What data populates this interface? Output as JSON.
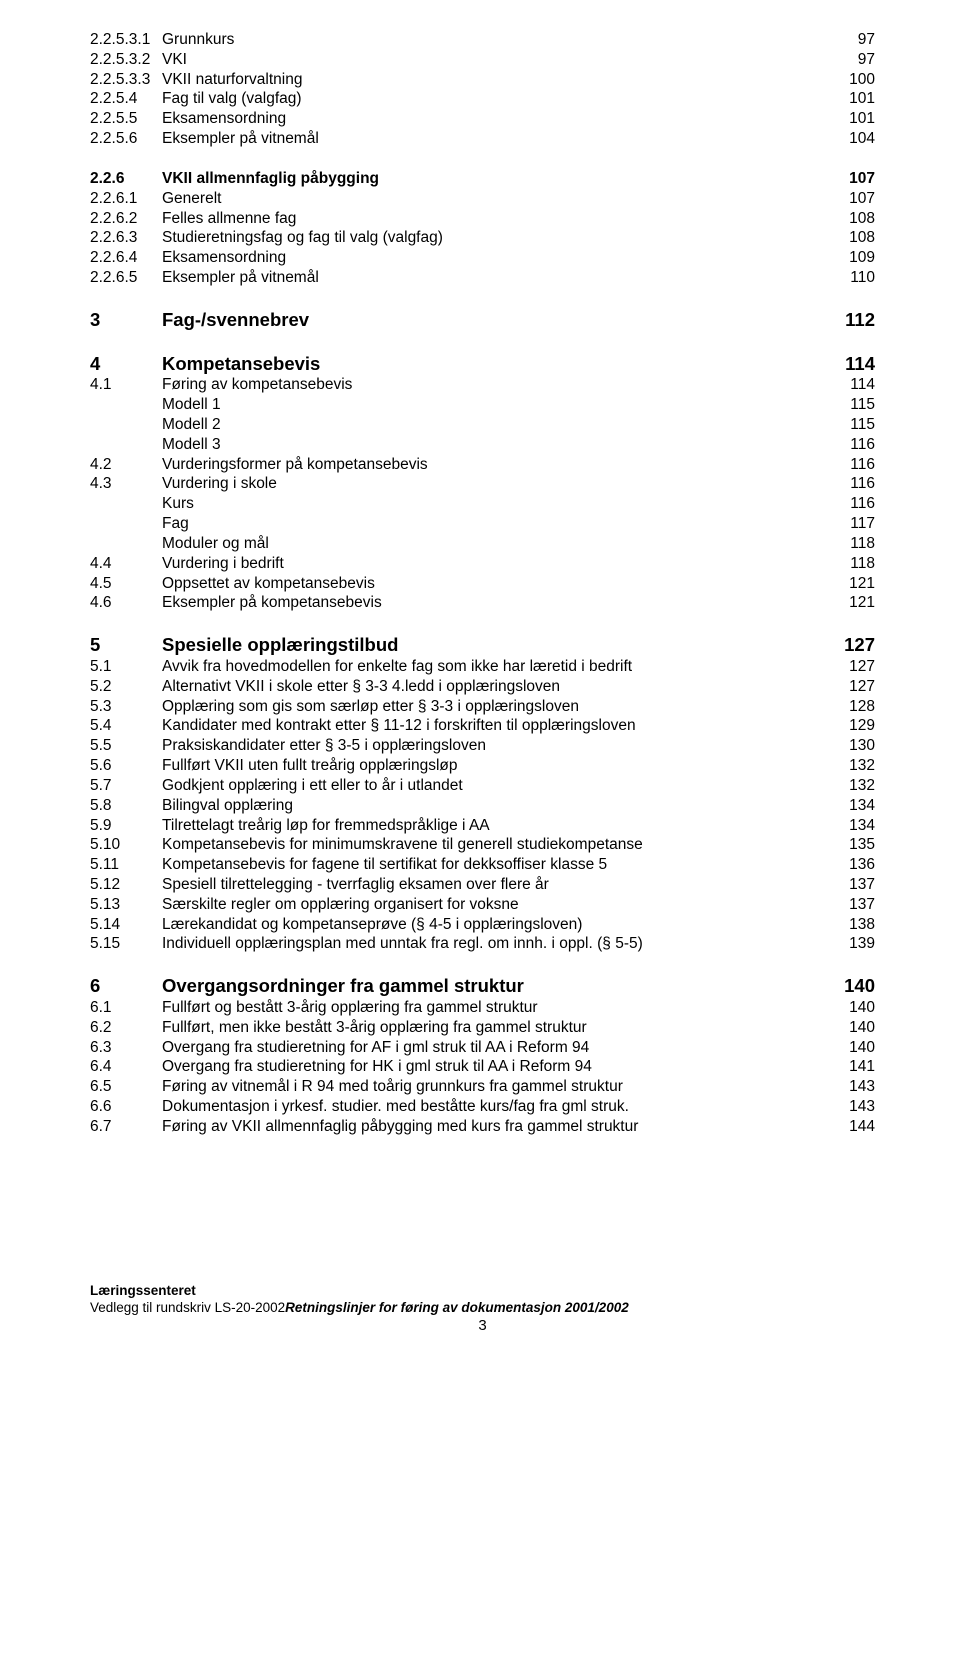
{
  "sectionA": [
    {
      "num": "2.2.5.3.1",
      "title": "Grunnkurs",
      "page": "97"
    },
    {
      "num": "2.2.5.3.2",
      "title": "VKI",
      "page": "97"
    },
    {
      "num": "2.2.5.3.3",
      "title": "VKII naturforvaltning",
      "page": "100"
    },
    {
      "num": "2.2.5.4",
      "title": "Fag til valg (valgfag)",
      "page": "101"
    },
    {
      "num": "2.2.5.5",
      "title": "Eksamensordning",
      "page": "101"
    },
    {
      "num": "2.2.5.6",
      "title": "Eksempler på vitnemål",
      "page": "104"
    }
  ],
  "sectionB": [
    {
      "num": "2.2.6",
      "title": "VKII allmennfaglig påbygging",
      "page": "107",
      "bold": true
    },
    {
      "num": "2.2.6.1",
      "title": "Generelt",
      "page": "107"
    },
    {
      "num": "2.2.6.2",
      "title": "Felles allmenne fag",
      "page": "108"
    },
    {
      "num": "2.2.6.3",
      "title": "Studieretningsfag og fag til valg (valgfag)",
      "page": "108"
    },
    {
      "num": "2.2.6.4",
      "title": "Eksamensordning",
      "page": "109"
    },
    {
      "num": "2.2.6.5",
      "title": "Eksempler på vitnemål",
      "page": "110"
    }
  ],
  "section3": {
    "heading": {
      "num": "3",
      "title": "Fag-/svennebrev",
      "page": "112"
    }
  },
  "section4": {
    "heading": {
      "num": "4",
      "title": "Kompetansebevis",
      "page": "114"
    },
    "rows": [
      {
        "num": "4.1",
        "title": "Føring av kompetansebevis",
        "page": "114"
      },
      {
        "num": "",
        "title": "Modell 1",
        "page": "115"
      },
      {
        "num": "",
        "title": "Modell 2",
        "page": "115"
      },
      {
        "num": "",
        "title": "Modell 3",
        "page": "116"
      },
      {
        "num": "4.2",
        "title": "Vurderingsformer på kompetansebevis",
        "page": "116"
      },
      {
        "num": "4.3",
        "title": "Vurdering i skole",
        "page": "116"
      },
      {
        "num": "",
        "title": "Kurs",
        "page": "116"
      },
      {
        "num": "",
        "title": "Fag",
        "page": "117"
      },
      {
        "num": "",
        "title": "Moduler og mål",
        "page": "118"
      },
      {
        "num": "4.4",
        "title": "Vurdering i bedrift",
        "page": "118"
      },
      {
        "num": "4.5",
        "title": "Oppsettet av kompetansebevis",
        "page": "121"
      },
      {
        "num": "4.6",
        "title": "Eksempler på kompetansebevis",
        "page": "121"
      }
    ]
  },
  "section5": {
    "heading": {
      "num": "5",
      "title": "Spesielle opplæringstilbud",
      "page": "127"
    },
    "rows": [
      {
        "num": "5.1",
        "title": "Avvik fra hovedmodellen for enkelte fag som ikke har læretid i bedrift",
        "page": "127"
      },
      {
        "num": "5.2",
        "title": "Alternativt VKII i skole etter § 3-3 4.ledd i opplæringsloven",
        "page": "127"
      },
      {
        "num": "5.3",
        "title": "Opplæring som gis som særløp etter § 3-3 i opplæringsloven",
        "page": "128"
      },
      {
        "num": "5.4",
        "title": "Kandidater med kontrakt etter § 11-12 i forskriften til opplæringsloven",
        "page": "129"
      },
      {
        "num": "5.5",
        "title": "Praksiskandidater etter § 3-5 i opplæringsloven",
        "page": "130"
      },
      {
        "num": "5.6",
        "title": "Fullført VKII uten fullt treårig opplæringsløp",
        "page": "132"
      },
      {
        "num": "5.7",
        "title": "Godkjent opplæring i ett eller to år i utlandet",
        "page": "132"
      },
      {
        "num": "5.8",
        "title": "Bilingval opplæring",
        "page": "134"
      },
      {
        "num": "5.9",
        "title": "Tilrettelagt treårig løp for fremmedspråklige i AA",
        "page": "134"
      },
      {
        "num": "5.10",
        "title": "Kompetansebevis for minimumskravene til generell studiekompetanse",
        "page": "135"
      },
      {
        "num": "5.11",
        "title": "Kompetansebevis for fagene til sertifikat for dekksoffiser klasse 5",
        "page": "136"
      },
      {
        "num": "5.12",
        "title": "Spesiell tilrettelegging - tverrfaglig eksamen over flere år",
        "page": "137"
      },
      {
        "num": "5.13",
        "title": "Særskilte regler om opplæring organisert for voksne",
        "page": "137"
      },
      {
        "num": "5.14",
        "title": "Lærekandidat og kompetanseprøve (§ 4-5 i opplæringsloven)",
        "page": "138"
      },
      {
        "num": "5.15",
        "title": "Individuell opplæringsplan med unntak fra regl. om innh. i oppl. (§ 5-5)",
        "page": "139"
      }
    ]
  },
  "section6": {
    "heading": {
      "num": "6",
      "title": "Overgangsordninger fra gammel struktur",
      "page": "140"
    },
    "rows": [
      {
        "num": "6.1",
        "title": "Fullført og bestått 3-årig opplæring fra gammel struktur",
        "page": "140"
      },
      {
        "num": "6.2",
        "title": "Fullført, men ikke bestått 3-årig opplæring fra gammel struktur",
        "page": "140"
      },
      {
        "num": "6.3",
        "title": "Overgang fra studieretning for AF i gml struk til AA i Reform 94",
        "page": "140"
      },
      {
        "num": "6.4",
        "title": "Overgang fra studieretning for HK i gml struk til AA i Reform 94",
        "page": "141"
      },
      {
        "num": "6.5",
        "title": "Føring av vitnemål i R 94 med toårig grunnkurs fra gammel struktur",
        "page": "143"
      },
      {
        "num": "6.6",
        "title": "Dokumentasjon i yrkesf. studier. med beståtte kurs/fag fra gml struk.",
        "page": "143"
      },
      {
        "num": "6.7",
        "title": "Føring av VKII allmennfaglig påbygging med kurs fra gammel struktur",
        "page": "144"
      }
    ]
  },
  "footer": {
    "line1": "Læringssenteret",
    "prefix": "Vedlegg til rundskriv LS-20-2002 ",
    "italic_bold": "Retningslinjer for føring av dokumentasjon 2001/2002",
    "page": "3"
  }
}
